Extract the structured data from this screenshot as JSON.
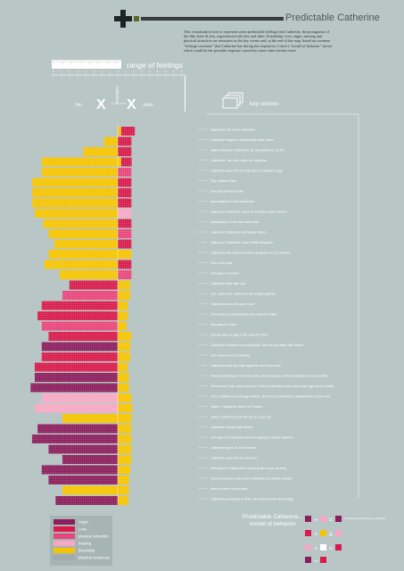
{
  "page": {
    "title": "Predictable Catherine",
    "intro": "This visualization tries to represent some predictable feelings that Catherine, the protagonist of the film Jules & Jim, experienced with Jim and Jules. Friendship, love, anger, missing and physical attraction are measures in the key scenes and, at the end of the map, based on common \"feelings reactions\" that Catherine has during the sequences, I tried a \"model of behavior\" shows which could be her possible response caused by some other similar event.",
    "range_label": "range of feelings",
    "key_scenes_label": "key scenes",
    "model_label_line1": "Predictable Catherine...",
    "model_label_line2": "model of behavior"
  },
  "characters": {
    "left": "Jim",
    "center": "Catherine",
    "right": "Jules"
  },
  "legend": {
    "items": [
      {
        "label": "Anger",
        "color": "#8b1e5c"
      },
      {
        "label": "Love",
        "color": "#d81b4b"
      },
      {
        "label": "physical attraction",
        "color": "#e8467a"
      },
      {
        "label": "missing",
        "color": "#f6a8c3"
      },
      {
        "label": "friendship",
        "color": "#f5c400"
      },
      {
        "label": "physical closeness",
        "pattern": true
      }
    ]
  },
  "model": {
    "label": "Predictable Catherine... model of behavior",
    "caption": "tenderness and jealousy / affection"
  },
  "colors": {
    "background": "#b9c6c6",
    "anger": "#8b1e5c",
    "love": "#d81b4b",
    "physical_attraction": "#e8467a",
    "missing": "#f6a8c3",
    "friendship": "#f5c400"
  },
  "chart_data": {
    "type": "bar",
    "orientation": "horizontal-diverging",
    "xlabel": "range of feelings",
    "scale_left": "Jim",
    "scale_right": "Jules",
    "xlim": [
      -8,
      8
    ],
    "series": [
      {
        "name": "Anger",
        "color": "#8b1e5c"
      },
      {
        "name": "Love",
        "color": "#d81b4b"
      },
      {
        "name": "physical attraction",
        "color": "#e8467a"
      },
      {
        "name": "missing",
        "color": "#f6a8c3"
      },
      {
        "name": "friendship",
        "color": "#f5c400"
      }
    ],
    "scenes": [
      {
        "label": "Jules and Jim meet Catherine",
        "jim": [],
        "jules": [
          [
            "friendship",
            1.4
          ],
          [
            "love",
            5.5
          ]
        ]
      },
      {
        "label": "Catherine begins a relationship with Jules",
        "jim": [
          [
            "friendship",
            1
          ]
        ],
        "jules": [
          [
            "love",
            5.5
          ]
        ]
      },
      {
        "label": "Jules introduce Catherine, as his girlfriend, to Jim",
        "jim": [
          [
            "friendship",
            2.5
          ]
        ],
        "jules": [
          [
            "love",
            5.5
          ]
        ]
      },
      {
        "label": "Catherine, Jim and Jules run together",
        "jim": [
          [
            "friendship",
            5.5
          ]
        ],
        "jules": [
          [
            "friendship",
            1.4
          ],
          [
            "love",
            4.2
          ]
        ]
      },
      {
        "label": "Catherine asks Jim to help her to makeber bags",
        "jim": [
          [
            "friendship",
            5.5
          ]
        ],
        "jules": [
          [
            "physical attraction",
            5.5
          ]
        ]
      },
      {
        "label": "Trip outside Paris",
        "jim": [
          [
            "friendship",
            6.2
          ]
        ],
        "jules": [
          [
            "love",
            5.5
          ]
        ]
      },
      {
        "label": "Evening at the theatre",
        "jim": [
          [
            "friendship",
            6.2
          ]
        ],
        "jules": [
          [
            "love",
            5.5
          ]
        ]
      },
      {
        "label": "Immediately in the restaurant",
        "jim": [
          [
            "friendship",
            6.2
          ]
        ],
        "jules": [
          [
            "love",
            5.5
          ]
        ]
      },
      {
        "label": "Jules and Catherine move to Austria to get married",
        "jim": [
          [
            "friendship",
            6
          ]
        ],
        "jules": [
          [
            "missing",
            5.5
          ]
        ]
      },
      {
        "label": "Declaration of the first world war",
        "jim": [
          [
            "friendship",
            5.4
          ]
        ],
        "jules": [
          [
            "love",
            5.5
          ]
        ]
      },
      {
        "label": "Jules and Catherine exchange letters",
        "jim": [
          [
            "friendship",
            5
          ]
        ],
        "jules": [
          [
            "physical attraction",
            5.5
          ]
        ]
      },
      {
        "label": "Jules and Catherine have a little daughter",
        "jim": [
          [
            "friendship",
            4.6
          ]
        ],
        "jules": [
          [
            "love",
            5.5
          ]
        ]
      },
      {
        "label": "Catherine left Jules and their daughter for six months",
        "jim": [
          [
            "friendship",
            5
          ]
        ],
        "jules": [
          [
            "friendship",
            5.5
          ]
        ]
      },
      {
        "label": "End of the war",
        "jim": [
          [
            "friendship",
            5.3
          ]
        ],
        "jules": [
          [
            "love",
            5.5
          ]
        ]
      },
      {
        "label": "Jim goes to Austria",
        "jim": [
          [
            "friendship",
            4.2
          ]
        ],
        "jules": [
          [
            "physical attraction",
            5.5
          ]
        ]
      },
      {
        "label": "Catherine flirts with Jim",
        "jim": [
          [
            "love",
            3.5
          ]
        ],
        "jules": [
          [
            "friendship",
            5
          ]
        ]
      },
      {
        "label": "Jim, Jules and Catherine are living together",
        "jim": [
          [
            "physical attraction",
            4
          ]
        ],
        "jules": [
          [
            "friendship",
            5
          ]
        ]
      },
      {
        "label": "Catherine and Jim are in love",
        "jim": [
          [
            "love",
            5.5
          ]
        ],
        "jules": [
          [
            "friendship",
            4
          ]
        ]
      },
      {
        "label": "Jim moves to Catherine's and Jules's Chalet",
        "jim": [
          [
            "love",
            5.8
          ]
        ],
        "jules": [
          [
            "friendship",
            4
          ]
        ]
      },
      {
        "label": "Jim goes to Paris",
        "jim": [
          [
            "physical attraction",
            5.5
          ]
        ],
        "jules": [
          [
            "friendship",
            3.5
          ]
        ]
      },
      {
        "label": "Jim decides to stay a bit more in Paris",
        "jim": [
          [
            "love",
            5
          ]
        ],
        "jules": [
          [
            "friendship",
            5.5
          ]
        ]
      },
      {
        "label": "Catherine torments and punishes Jim with an affair with Albert",
        "jim": [
          [
            "anger",
            5.5
          ]
        ],
        "jules": [
          [
            "friendship",
            5
          ]
        ]
      },
      {
        "label": "Jim comes back to Austria",
        "jim": [
          [
            "love",
            5.5
          ]
        ],
        "jules": [
          [
            "friendship",
            5
          ]
        ]
      },
      {
        "label": "Catherine and Jim stay together one more time",
        "jim": [
          [
            "love",
            6
          ]
        ],
        "jules": [
          [
            "friendship",
            4
          ]
        ]
      },
      {
        "label": "Tensions between Jim and Cath, arise because of their inability to have a child",
        "jim": [
          [
            "anger",
            6
          ]
        ],
        "jules": [
          [
            "friendship",
            4.5
          ]
        ]
      },
      {
        "label": "Jim leaves Cath. and returns to Paris (Catherine's and Jim's last night at the hotel)",
        "jim": [
          [
            "anger",
            6.3
          ]
        ],
        "jules": [
          [
            "friendship",
            4.5
          ]
        ]
      },
      {
        "label": "Jim e Catherine exchange letters, Jim's and Catherine's relationship is now over",
        "jim": [
          [
            "missing",
            5.5
          ]
        ],
        "jules": [
          [
            "friendship",
            5.5
          ]
        ]
      },
      {
        "label": "Jules + Catherine return to France",
        "jim": [
          [
            "missing",
            6
          ]
        ],
        "jules": [
          [
            "friendship",
            5.8
          ]
        ]
      },
      {
        "label": "Jules, Catherine and Jim get in a car trip",
        "jim": [
          [
            "friendship",
            4
          ]
        ],
        "jules": [
          [
            "friendship",
            5.5
          ]
        ]
      },
      {
        "label": "Catherine sleeps with Albert",
        "jim": [
          [
            "anger",
            5.8
          ]
        ],
        "jules": [
          [
            "friendship",
            5.5
          ]
        ]
      },
      {
        "label": "Jim says to Catherine that he is going to marry Gilberte",
        "jim": [
          [
            "anger",
            6.2
          ]
        ],
        "jules": [
          [
            "friendship",
            5.5
          ]
        ]
      },
      {
        "label": "Catherine goes to Jim's house",
        "jim": [
          [
            "anger",
            5
          ]
        ],
        "jules": [
          [
            "friendship",
            5.5
          ]
        ]
      },
      {
        "label": "Catherine asks Jim to meet her",
        "jim": [
          [
            "anger",
            4
          ]
        ],
        "jules": [
          [
            "friendship",
            5.5
          ]
        ]
      },
      {
        "label": "Jim goes to Catherine's house (pulls a gun on him)",
        "jim": [
          [
            "anger",
            5.5
          ]
        ],
        "jules": [
          [
            "friendship",
            5
          ]
        ]
      },
      {
        "label": "Jim encounters Jules and Catherine in a movie theatre",
        "jim": [
          [
            "anger",
            5
          ]
        ],
        "jules": [
          [
            "friendship",
            4.5
          ]
        ]
      },
      {
        "label": "three of them visit a park",
        "jim": [
          [
            "friendship",
            4
          ]
        ],
        "jules": [
          [
            "friendship",
            4.5
          ]
        ]
      },
      {
        "label": "Catherine proceeds to drive Jim and herself off a bridge",
        "jim": [
          [
            "anger",
            4.5
          ]
        ],
        "jules": [
          [
            "friendship",
            4.2
          ]
        ]
      }
    ]
  }
}
